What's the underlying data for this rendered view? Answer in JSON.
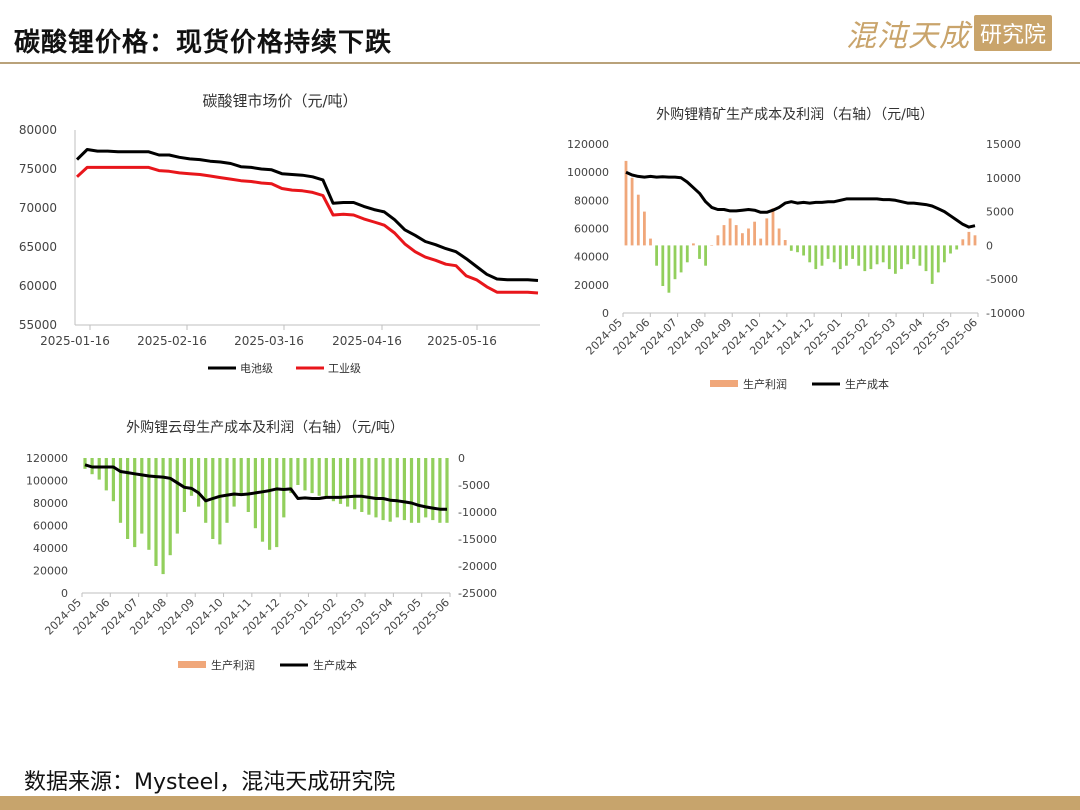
{
  "page": {
    "title": "碳酸锂价格：现货价格持续下跌",
    "logo_script": "混沌天成",
    "logo_box": "研究院",
    "source": "数据来源：Mysteel，混沌天成研究院"
  },
  "colors": {
    "battery": "#000000",
    "industrial": "#e8161b",
    "profit_pos": "#f0a77a",
    "profit_neg": "#92cf5c",
    "cost": "#000000",
    "accent": "#c7a46c"
  },
  "chart_data": [
    {
      "type": "line",
      "title": "碳酸锂市场价（元/吨）",
      "xlabel": "",
      "ylabel": "",
      "x_ticks": [
        "2025-01-16",
        "2025-02-16",
        "2025-03-16",
        "2025-04-16",
        "2025-05-16"
      ],
      "y_ticks": [
        "55000",
        "60000",
        "65000",
        "70000",
        "75000",
        "80000"
      ],
      "ylim": [
        55000,
        80000
      ],
      "legend": "bottom",
      "series": [
        {
          "name": "电池级",
          "color": "#000000",
          "values": [
            76200,
            77500,
            77300,
            77300,
            77200,
            77200,
            77200,
            77200,
            76800,
            76800,
            76500,
            76300,
            76200,
            76000,
            75900,
            75700,
            75300,
            75200,
            75000,
            74900,
            74400,
            74300,
            74200,
            74000,
            73600,
            70600,
            70700,
            70700,
            70200,
            69800,
            69500,
            68500,
            67200,
            66500,
            65700,
            65300,
            64800,
            64400,
            63500,
            62500,
            61500,
            60900,
            60800,
            60800,
            60800,
            60700
          ]
        },
        {
          "name": "工业级",
          "color": "#e8161b",
          "values": [
            74000,
            75200,
            75200,
            75200,
            75200,
            75200,
            75200,
            75200,
            74800,
            74700,
            74500,
            74400,
            74300,
            74100,
            73900,
            73700,
            73500,
            73400,
            73200,
            73100,
            72500,
            72300,
            72200,
            72000,
            71600,
            69100,
            69200,
            69100,
            68600,
            68200,
            67800,
            66800,
            65400,
            64400,
            63700,
            63300,
            62800,
            62600,
            61300,
            60800,
            59900,
            59200,
            59200,
            59200,
            59200,
            59100
          ]
        }
      ]
    },
    {
      "type": "bar+line",
      "title": "外购锂精矿生产成本及利润（右轴）（元/吨）",
      "xlabel": "",
      "ylabel": "",
      "x_ticks": [
        "2024-05",
        "2024-06",
        "2024-07",
        "2024-08",
        "2024-09",
        "2024-10",
        "2024-11",
        "2024-12",
        "2025-01",
        "2025-02",
        "2025-03",
        "2025-04",
        "2025-05",
        "2025-06"
      ],
      "y_ticks_left": [
        "0",
        "20000",
        "40000",
        "60000",
        "80000",
        "100000",
        "120000"
      ],
      "y_ticks_right": [
        "-10000",
        "-5000",
        "0",
        "5000",
        "10000",
        "15000"
      ],
      "ylim_left": [
        0,
        120000
      ],
      "ylim_right": [
        -10000,
        15000
      ],
      "legend": "bottom",
      "series": [
        {
          "name": "生产利润",
          "axis": "right",
          "color": "#f0a77a",
          "values": [
            12500,
            10000,
            7500,
            5000,
            1000,
            -3000,
            -6000,
            -7000,
            -5000,
            -4000,
            -2500,
            300,
            -2000,
            -3000,
            0,
            1500,
            3000,
            4000,
            3000,
            1800,
            2500,
            3500,
            1000,
            4000,
            5500,
            2500,
            800,
            -800,
            -1000,
            -1500,
            -2500,
            -3500,
            -3000,
            -2000,
            -2500,
            -3500,
            -3000,
            -2000,
            -3000,
            -3800,
            -3500,
            -2800,
            -2500,
            -3500,
            -4200,
            -3500,
            -2800,
            -2000,
            -3000,
            -3800,
            -5700,
            -4000,
            -2500,
            -1200,
            -600,
            900,
            2000,
            1500
          ]
        },
        {
          "name": "生产成本",
          "axis": "left",
          "color": "#000000",
          "values": [
            100000,
            98000,
            97000,
            96500,
            97000,
            96500,
            96800,
            96500,
            96500,
            96000,
            93000,
            89000,
            85000,
            79000,
            75000,
            73500,
            73500,
            72500,
            72500,
            73000,
            73500,
            73000,
            71500,
            71500,
            73000,
            75000,
            78000,
            79000,
            78000,
            78500,
            78000,
            78500,
            78500,
            79000,
            79000,
            80000,
            81000,
            81000,
            81000,
            81000,
            81000,
            81000,
            80500,
            80500,
            80000,
            79000,
            78000,
            78000,
            77500,
            77000,
            76000,
            74000,
            72000,
            69000,
            66000,
            63000,
            61000,
            62000
          ]
        }
      ]
    },
    {
      "type": "bar+line",
      "title": "外购锂云母生产成本及利润（右轴）（元/吨）",
      "xlabel": "",
      "ylabel": "",
      "x_ticks": [
        "2024-05",
        "2024-06",
        "2024-07",
        "2024-08",
        "2024-09",
        "2024-10",
        "2024-11",
        "2024-12",
        "2025-01",
        "2025-02",
        "2025-03",
        "2025-04",
        "2025-05",
        "2025-06"
      ],
      "y_ticks_left": [
        "0",
        "20000",
        "40000",
        "60000",
        "80000",
        "100000",
        "120000"
      ],
      "y_ticks_right": [
        "-25000",
        "-20000",
        "-15000",
        "-10000",
        "-5000",
        "0"
      ],
      "ylim_left": [
        0,
        120000
      ],
      "ylim_right": [
        -25000,
        0
      ],
      "legend": "bottom",
      "series": [
        {
          "name": "生产利润",
          "axis": "right",
          "color": "#f0a77a",
          "values": [
            -2000,
            -3000,
            -4000,
            -6000,
            -8000,
            -12000,
            -15000,
            -16500,
            -14000,
            -17000,
            -20000,
            -21500,
            -18000,
            -14000,
            -10000,
            -7000,
            -9000,
            -12000,
            -15000,
            -16000,
            -12000,
            -9000,
            -7000,
            -10000,
            -13000,
            -15500,
            -17000,
            -16500,
            -11000,
            -6500,
            -5000,
            -6000,
            -6500,
            -7000,
            -7500,
            -8000,
            -8500,
            -9000,
            -9500,
            -10000,
            -10500,
            -11000,
            -11500,
            -11800,
            -11000,
            -11500,
            -12000,
            -12000,
            -11000,
            -11500,
            -12000,
            -12000
          ]
        },
        {
          "name": "生产成本",
          "axis": "left",
          "color": "#000000",
          "values": [
            114000,
            112000,
            112000,
            112000,
            112000,
            108000,
            107000,
            106000,
            105000,
            104000,
            103500,
            103000,
            102000,
            98000,
            94000,
            93000,
            89000,
            82000,
            84000,
            86000,
            87000,
            88000,
            87500,
            88000,
            89000,
            90000,
            91000,
            92500,
            92000,
            92500,
            84000,
            84500,
            84000,
            84000,
            85000,
            85000,
            85000,
            85500,
            86000,
            86000,
            85000,
            84000,
            84000,
            82500,
            82000,
            81000,
            80000,
            78000,
            76500,
            75500,
            74500,
            74500
          ]
        }
      ]
    }
  ]
}
